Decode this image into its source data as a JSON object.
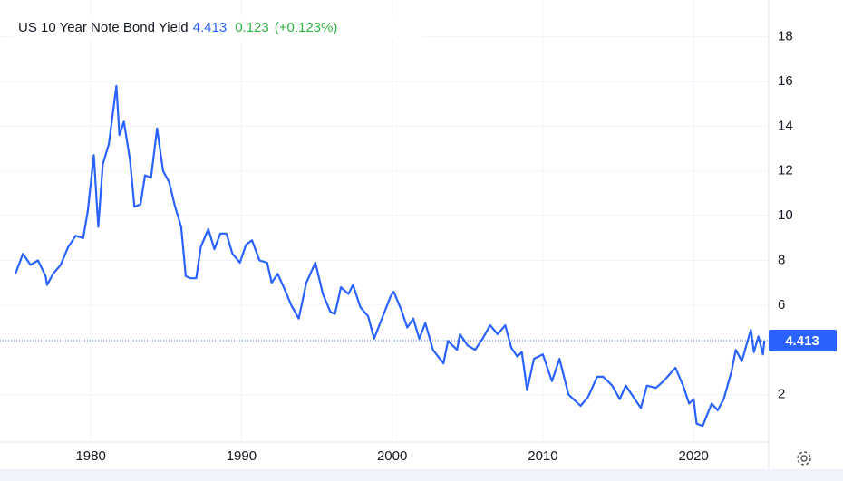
{
  "chart_data": {
    "type": "line",
    "title": "US 10 Year Note Bond Yield",
    "last_value": 4.413,
    "change": 0.123,
    "change_percent_label": "(+0.123%)",
    "xlim": [
      1975,
      2024.8
    ],
    "xticks": [
      1980,
      1990,
      2000,
      2010,
      2020
    ],
    "ylim": [
      0,
      19.4
    ],
    "yticks": [
      2,
      6,
      8,
      10,
      12,
      14,
      16,
      18
    ],
    "grid": true,
    "series": [
      {
        "name": "US 10 Year Note Bond Yield",
        "color": "#2962ff",
        "x": [
          1975.0,
          1975.5,
          1976.0,
          1976.5,
          1977.0,
          1977.1,
          1977.5,
          1978.0,
          1978.5,
          1979.0,
          1979.5,
          1979.8,
          1980.2,
          1980.5,
          1980.8,
          1981.2,
          1981.7,
          1981.9,
          1982.2,
          1982.6,
          1982.9,
          1983.3,
          1983.6,
          1984.0,
          1984.4,
          1984.8,
          1985.2,
          1985.6,
          1986.0,
          1986.3,
          1986.6,
          1987.0,
          1987.3,
          1987.8,
          1988.2,
          1988.6,
          1989.0,
          1989.4,
          1989.9,
          1990.3,
          1990.7,
          1991.2,
          1991.7,
          1992.0,
          1992.4,
          1992.8,
          1993.3,
          1993.8,
          1994.3,
          1994.9,
          1995.4,
          1995.9,
          1996.2,
          1996.6,
          1997.1,
          1997.4,
          1997.9,
          1998.4,
          1998.8,
          1999.2,
          1999.9,
          2000.1,
          2000.6,
          2001.0,
          2001.4,
          2001.8,
          2002.2,
          2002.7,
          2003.4,
          2003.7,
          2004.3,
          2004.5,
          2005.0,
          2005.5,
          2006.0,
          2006.5,
          2007.0,
          2007.5,
          2007.9,
          2008.3,
          2008.6,
          2008.95,
          2009.4,
          2010.0,
          2010.6,
          2011.1,
          2011.7,
          2012.5,
          2013.0,
          2013.6,
          2014.0,
          2014.6,
          2015.1,
          2015.5,
          2016.5,
          2016.9,
          2017.5,
          2018.0,
          2018.8,
          2019.3,
          2019.7,
          2020.0,
          2020.2,
          2020.6,
          2021.2,
          2021.6,
          2022.0,
          2022.5,
          2022.8,
          2023.2,
          2023.8,
          2024.0,
          2024.3,
          2024.6,
          2024.7
        ],
        "values": [
          7.4,
          8.3,
          7.8,
          8.0,
          7.3,
          6.9,
          7.4,
          7.8,
          8.6,
          9.1,
          9.0,
          10.2,
          12.7,
          9.5,
          12.3,
          13.2,
          15.8,
          13.6,
          14.2,
          12.5,
          10.4,
          10.5,
          11.8,
          11.7,
          13.9,
          12.0,
          11.5,
          10.4,
          9.5,
          7.3,
          7.2,
          7.2,
          8.6,
          9.4,
          8.5,
          9.2,
          9.2,
          8.3,
          7.9,
          8.7,
          8.9,
          8.0,
          7.9,
          7.0,
          7.4,
          6.8,
          6.0,
          5.4,
          7.0,
          7.9,
          6.5,
          5.7,
          5.6,
          6.8,
          6.5,
          6.9,
          5.9,
          5.5,
          4.5,
          5.2,
          6.4,
          6.6,
          5.8,
          5.0,
          5.4,
          4.5,
          5.2,
          4.0,
          3.4,
          4.4,
          4.0,
          4.7,
          4.2,
          4.0,
          4.5,
          5.1,
          4.7,
          5.1,
          4.1,
          3.7,
          3.9,
          2.2,
          3.6,
          3.8,
          2.6,
          3.6,
          2.0,
          1.5,
          1.9,
          2.8,
          2.8,
          2.4,
          1.8,
          2.4,
          1.4,
          2.4,
          2.3,
          2.6,
          3.2,
          2.4,
          1.6,
          1.8,
          0.7,
          0.6,
          1.6,
          1.3,
          1.8,
          3.0,
          4.0,
          3.5,
          4.9,
          3.9,
          4.6,
          3.8,
          4.413
        ]
      }
    ]
  }
}
